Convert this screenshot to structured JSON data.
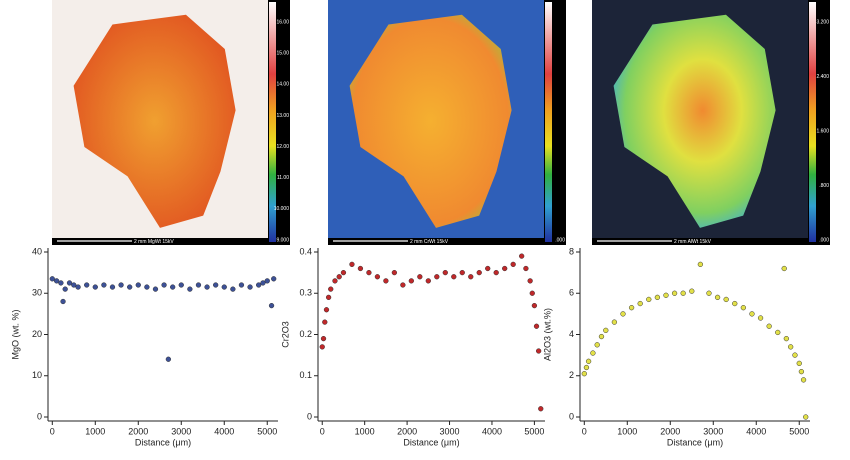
{
  "maps": [
    {
      "scale_label": "2 mm MgWt 15kV",
      "colorbar_labels": [
        "16.00",
        "15.00",
        "14.00",
        "13.00",
        "12.00",
        "11.00",
        "10.000",
        "9.000"
      ]
    },
    {
      "scale_label": "2 mm CrWt 15kV",
      "colorbar_labels": [
        ".000"
      ]
    },
    {
      "scale_label": "2 mm AlWt 15kV",
      "colorbar_labels": [
        "3.200",
        "2.400",
        "1.600",
        ".800",
        ".000"
      ]
    }
  ],
  "chart_data": [
    {
      "type": "scatter",
      "xlabel": "Distance (μm)",
      "ylabel": "MgO (wt. %)",
      "color": "#3d5196",
      "xlim": [
        -100,
        5250
      ],
      "xticks": [
        0,
        1000,
        2000,
        3000,
        4000,
        5000
      ],
      "ylim": [
        0,
        40
      ],
      "yticks": [
        0,
        10,
        20,
        30,
        40
      ],
      "x": [
        0,
        100,
        200,
        250,
        300,
        400,
        500,
        600,
        800,
        1000,
        1200,
        1400,
        1600,
        1800,
        2000,
        2200,
        2400,
        2600,
        2700,
        2800,
        3000,
        3200,
        3400,
        3600,
        3800,
        4000,
        4200,
        4400,
        4600,
        4800,
        4900,
        5000,
        5100,
        5150
      ],
      "values": [
        33.5,
        33,
        32.5,
        28,
        31,
        32.5,
        32,
        31.5,
        32,
        31.5,
        32,
        31.5,
        32,
        31.5,
        32,
        31.5,
        31,
        32,
        14,
        31.5,
        32,
        31,
        32,
        31.5,
        32,
        31.5,
        31,
        32,
        31.5,
        32,
        32.5,
        33,
        27,
        33.5
      ]
    },
    {
      "type": "scatter",
      "xlabel": "Distance (μm)",
      "ylabel": "Cr2O3",
      "color": "#c0282a",
      "xlim": [
        -100,
        5250
      ],
      "xticks": [
        0,
        1000,
        2000,
        3000,
        4000,
        5000
      ],
      "ylim": [
        0,
        0.4
      ],
      "yticks": [
        0,
        0.1,
        0.2,
        0.3,
        0.4
      ],
      "x": [
        0,
        30,
        60,
        100,
        150,
        200,
        300,
        400,
        500,
        700,
        900,
        1100,
        1300,
        1500,
        1700,
        1900,
        2100,
        2300,
        2500,
        2700,
        2900,
        3100,
        3300,
        3500,
        3700,
        3900,
        4100,
        4300,
        4500,
        4700,
        4800,
        4900,
        4950,
        5000,
        5050,
        5100,
        5150
      ],
      "values": [
        0.17,
        0.19,
        0.23,
        0.26,
        0.29,
        0.31,
        0.33,
        0.34,
        0.35,
        0.37,
        0.36,
        0.35,
        0.34,
        0.33,
        0.35,
        0.32,
        0.33,
        0.34,
        0.33,
        0.34,
        0.35,
        0.34,
        0.35,
        0.34,
        0.35,
        0.36,
        0.35,
        0.36,
        0.37,
        0.39,
        0.36,
        0.33,
        0.3,
        0.27,
        0.22,
        0.16,
        0.02
      ]
    },
    {
      "type": "scatter",
      "xlabel": "Distance (μm)",
      "ylabel": "Al2O3 (wt.%)",
      "color": "#e2e048",
      "xlim": [
        -100,
        5250
      ],
      "xticks": [
        0,
        1000,
        2000,
        3000,
        4000,
        5000
      ],
      "ylim": [
        0,
        8
      ],
      "yticks": [
        0,
        2,
        4,
        6,
        8
      ],
      "x": [
        0,
        50,
        100,
        200,
        300,
        400,
        500,
        700,
        900,
        1100,
        1300,
        1500,
        1700,
        1900,
        2100,
        2300,
        2500,
        2700,
        2900,
        3100,
        3300,
        3500,
        3700,
        3900,
        4100,
        4300,
        4500,
        4650,
        4700,
        4800,
        4900,
        5000,
        5050,
        5100,
        5150
      ],
      "values": [
        2.1,
        2.4,
        2.7,
        3.1,
        3.5,
        3.9,
        4.2,
        4.6,
        5.0,
        5.3,
        5.5,
        5.7,
        5.8,
        5.9,
        6.0,
        6.0,
        6.1,
        7.4,
        6.0,
        5.8,
        5.7,
        5.5,
        5.3,
        5.0,
        4.8,
        4.4,
        4.1,
        7.2,
        3.8,
        3.4,
        3.0,
        2.6,
        2.2,
        1.8,
        0
      ]
    }
  ]
}
